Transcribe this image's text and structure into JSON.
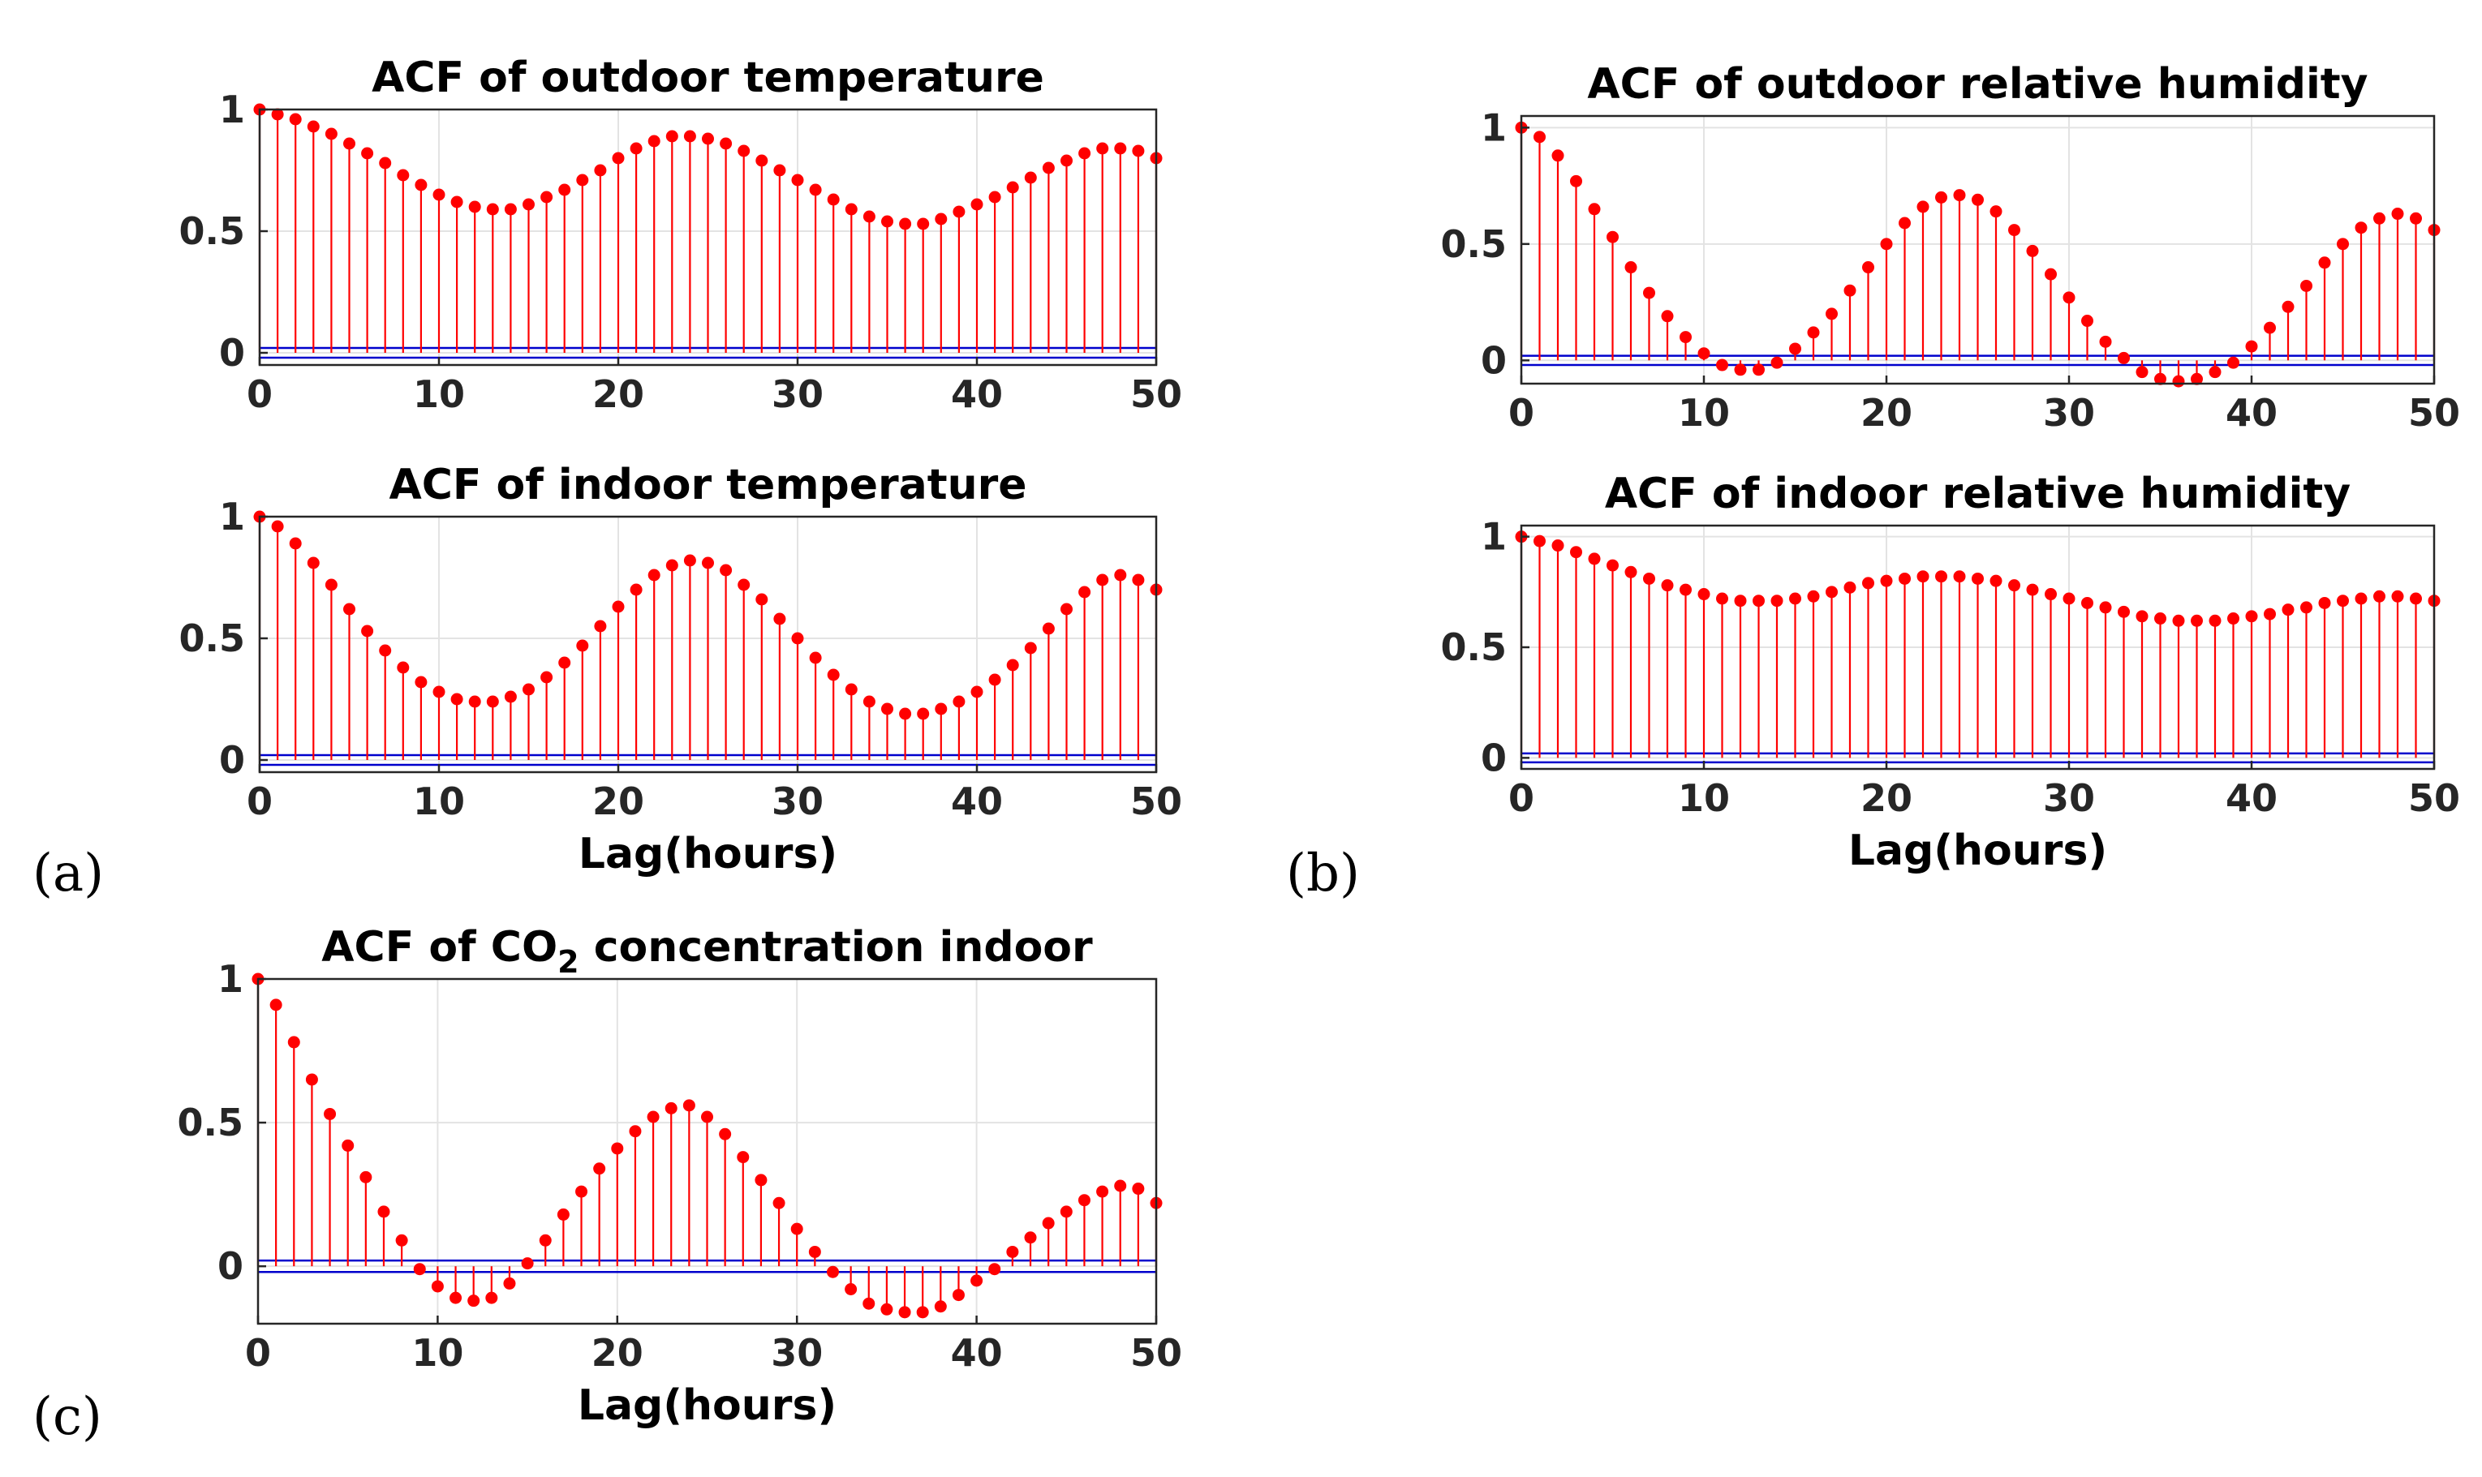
{
  "figure": {
    "panel_labels": {
      "a": "(a)",
      "b": "(b)",
      "c": "(c)"
    }
  },
  "colors": {
    "stem": "#ff0000",
    "marker": "#ff0000",
    "bound": "#0000cc",
    "axis": "#262626",
    "grid": "#e3e3e3",
    "background": "#ffffff"
  },
  "chart_data": [
    {
      "id": "outdoor_temp",
      "type": "stem",
      "title": "ACF of outdoor temperature",
      "xlabel": "",
      "ylabel": "",
      "xlim": [
        0,
        50
      ],
      "ylim": [
        -0.05,
        1
      ],
      "xticks": [
        0,
        10,
        20,
        30,
        40,
        50
      ],
      "yticks": [
        0,
        0.5,
        1
      ],
      "ytick_labels": [
        "0",
        "0.5",
        "1"
      ],
      "grid": true,
      "confidence_bounds": [
        0.02,
        -0.02
      ],
      "x": [
        0,
        1,
        2,
        3,
        4,
        5,
        6,
        7,
        8,
        9,
        10,
        11,
        12,
        13,
        14,
        15,
        16,
        17,
        18,
        19,
        20,
        21,
        22,
        23,
        24,
        25,
        26,
        27,
        28,
        29,
        30,
        31,
        32,
        33,
        34,
        35,
        36,
        37,
        38,
        39,
        40,
        41,
        42,
        43,
        44,
        45,
        46,
        47,
        48,
        49,
        50
      ],
      "values": [
        1.0,
        0.98,
        0.96,
        0.93,
        0.9,
        0.86,
        0.82,
        0.78,
        0.73,
        0.69,
        0.65,
        0.62,
        0.6,
        0.59,
        0.59,
        0.61,
        0.64,
        0.67,
        0.71,
        0.75,
        0.8,
        0.84,
        0.87,
        0.89,
        0.89,
        0.88,
        0.86,
        0.83,
        0.79,
        0.75,
        0.71,
        0.67,
        0.63,
        0.59,
        0.56,
        0.54,
        0.53,
        0.53,
        0.55,
        0.58,
        0.61,
        0.64,
        0.68,
        0.72,
        0.76,
        0.79,
        0.82,
        0.84,
        0.84,
        0.83,
        0.8
      ]
    },
    {
      "id": "indoor_temp",
      "type": "stem",
      "title": "ACF of indoor temperature",
      "xlabel": "Lag(hours)",
      "ylabel": "",
      "xlim": [
        0,
        50
      ],
      "ylim": [
        -0.05,
        1
      ],
      "xticks": [
        0,
        10,
        20,
        30,
        40,
        50
      ],
      "yticks": [
        0,
        0.5,
        1
      ],
      "ytick_labels": [
        "0",
        "0.5",
        "1"
      ],
      "grid": true,
      "confidence_bounds": [
        0.02,
        -0.02
      ],
      "x": [
        0,
        1,
        2,
        3,
        4,
        5,
        6,
        7,
        8,
        9,
        10,
        11,
        12,
        13,
        14,
        15,
        16,
        17,
        18,
        19,
        20,
        21,
        22,
        23,
        24,
        25,
        26,
        27,
        28,
        29,
        30,
        31,
        32,
        33,
        34,
        35,
        36,
        37,
        38,
        39,
        40,
        41,
        42,
        43,
        44,
        45,
        46,
        47,
        48,
        49,
        50
      ],
      "values": [
        1.0,
        0.96,
        0.89,
        0.81,
        0.72,
        0.62,
        0.53,
        0.45,
        0.38,
        0.32,
        0.28,
        0.25,
        0.24,
        0.24,
        0.26,
        0.29,
        0.34,
        0.4,
        0.47,
        0.55,
        0.63,
        0.7,
        0.76,
        0.8,
        0.82,
        0.81,
        0.78,
        0.72,
        0.66,
        0.58,
        0.5,
        0.42,
        0.35,
        0.29,
        0.24,
        0.21,
        0.19,
        0.19,
        0.21,
        0.24,
        0.28,
        0.33,
        0.39,
        0.46,
        0.54,
        0.62,
        0.69,
        0.74,
        0.76,
        0.74,
        0.7
      ]
    },
    {
      "id": "outdoor_rh",
      "type": "stem",
      "title": "ACF of outdoor relative humidity",
      "xlabel": "",
      "ylabel": "",
      "xlim": [
        0,
        50
      ],
      "ylim": [
        -0.1,
        1.05
      ],
      "xticks": [
        0,
        10,
        20,
        30,
        40,
        50
      ],
      "yticks": [
        0,
        0.5,
        1
      ],
      "ytick_labels": [
        "0",
        "0.5",
        "1"
      ],
      "grid": true,
      "confidence_bounds": [
        0.02,
        -0.02
      ],
      "x": [
        0,
        1,
        2,
        3,
        4,
        5,
        6,
        7,
        8,
        9,
        10,
        11,
        12,
        13,
        14,
        15,
        16,
        17,
        18,
        19,
        20,
        21,
        22,
        23,
        24,
        25,
        26,
        27,
        28,
        29,
        30,
        31,
        32,
        33,
        34,
        35,
        36,
        37,
        38,
        39,
        40,
        41,
        42,
        43,
        44,
        45,
        46,
        47,
        48,
        49,
        50
      ],
      "values": [
        1.0,
        0.96,
        0.88,
        0.77,
        0.65,
        0.53,
        0.4,
        0.29,
        0.19,
        0.1,
        0.03,
        -0.02,
        -0.04,
        -0.04,
        -0.01,
        0.05,
        0.12,
        0.2,
        0.3,
        0.4,
        0.5,
        0.59,
        0.66,
        0.7,
        0.71,
        0.69,
        0.64,
        0.56,
        0.47,
        0.37,
        0.27,
        0.17,
        0.08,
        0.01,
        -0.05,
        -0.08,
        -0.09,
        -0.08,
        -0.05,
        -0.01,
        0.06,
        0.14,
        0.23,
        0.32,
        0.42,
        0.5,
        0.57,
        0.61,
        0.63,
        0.61,
        0.56
      ]
    },
    {
      "id": "indoor_rh",
      "type": "stem",
      "title": "ACF of indoor relative humidity",
      "xlabel": "Lag(hours)",
      "ylabel": "",
      "xlim": [
        0,
        50
      ],
      "ylim": [
        -0.05,
        1.05
      ],
      "xticks": [
        0,
        10,
        20,
        30,
        40,
        50
      ],
      "yticks": [
        0,
        0.5,
        1
      ],
      "ytick_labels": [
        "0",
        "0.5",
        "1"
      ],
      "grid": true,
      "confidence_bounds": [
        0.02,
        -0.02
      ],
      "x": [
        0,
        1,
        2,
        3,
        4,
        5,
        6,
        7,
        8,
        9,
        10,
        11,
        12,
        13,
        14,
        15,
        16,
        17,
        18,
        19,
        20,
        21,
        22,
        23,
        24,
        25,
        26,
        27,
        28,
        29,
        30,
        31,
        32,
        33,
        34,
        35,
        36,
        37,
        38,
        39,
        40,
        41,
        42,
        43,
        44,
        45,
        46,
        47,
        48,
        49,
        50
      ],
      "values": [
        1.0,
        0.98,
        0.96,
        0.93,
        0.9,
        0.87,
        0.84,
        0.81,
        0.78,
        0.76,
        0.74,
        0.72,
        0.71,
        0.71,
        0.71,
        0.72,
        0.73,
        0.75,
        0.77,
        0.79,
        0.8,
        0.81,
        0.82,
        0.82,
        0.82,
        0.81,
        0.8,
        0.78,
        0.76,
        0.74,
        0.72,
        0.7,
        0.68,
        0.66,
        0.64,
        0.63,
        0.62,
        0.62,
        0.62,
        0.63,
        0.64,
        0.65,
        0.67,
        0.68,
        0.7,
        0.71,
        0.72,
        0.73,
        0.73,
        0.72,
        0.71
      ]
    },
    {
      "id": "co2_indoor",
      "type": "stem",
      "title": "ACF of CO",
      "title_subscript": "2",
      "title_suffix": " concentration indoor",
      "xlabel": "Lag(hours)",
      "ylabel": "",
      "xlim": [
        0,
        50
      ],
      "ylim": [
        -0.2,
        1
      ],
      "xticks": [
        0,
        10,
        20,
        30,
        40,
        50
      ],
      "yticks": [
        0,
        0.5,
        1
      ],
      "ytick_labels": [
        "0",
        "0.5",
        "1"
      ],
      "grid": true,
      "confidence_bounds": [
        0.02,
        -0.02
      ],
      "x": [
        0,
        1,
        2,
        3,
        4,
        5,
        6,
        7,
        8,
        9,
        10,
        11,
        12,
        13,
        14,
        15,
        16,
        17,
        18,
        19,
        20,
        21,
        22,
        23,
        24,
        25,
        26,
        27,
        28,
        29,
        30,
        31,
        32,
        33,
        34,
        35,
        36,
        37,
        38,
        39,
        40,
        41,
        42,
        43,
        44,
        45,
        46,
        47,
        48,
        49,
        50
      ],
      "values": [
        1.0,
        0.91,
        0.78,
        0.65,
        0.53,
        0.42,
        0.31,
        0.19,
        0.09,
        -0.01,
        -0.07,
        -0.11,
        -0.12,
        -0.11,
        -0.06,
        0.01,
        0.09,
        0.18,
        0.26,
        0.34,
        0.41,
        0.47,
        0.52,
        0.55,
        0.56,
        0.52,
        0.46,
        0.38,
        0.3,
        0.22,
        0.13,
        0.05,
        -0.02,
        -0.08,
        -0.13,
        -0.15,
        -0.16,
        -0.16,
        -0.14,
        -0.1,
        -0.05,
        -0.01,
        0.05,
        0.1,
        0.15,
        0.19,
        0.23,
        0.26,
        0.28,
        0.27,
        0.22
      ]
    }
  ]
}
